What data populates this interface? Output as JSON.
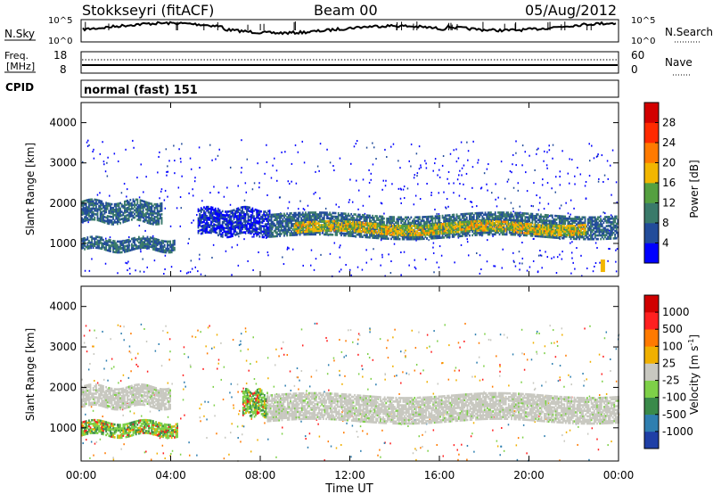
{
  "header": {
    "station": "Stokkseyri (fitACF)",
    "beam": "Beam 00",
    "date": "05/Aug/2012"
  },
  "noise_panel": {
    "left_label": "N.Sky",
    "left_ticks": [
      "10^5",
      "10^0"
    ],
    "right_ticks": [
      "10^5",
      "10^0"
    ],
    "right_label": "N.Search"
  },
  "freq_panel": {
    "left_label_1": "Freq.",
    "left_label_2": "[MHz]",
    "left_ticks": [
      "18",
      "8"
    ],
    "right_ticks": [
      "60",
      "0"
    ],
    "right_label": "Nave"
  },
  "cpid_panel": {
    "label": "CPID",
    "text": "normal (fast) 151"
  },
  "chart_data": [
    {
      "type": "heatmap",
      "name": "power",
      "ylabel": "Slant Range [km]",
      "ylim": [
        180,
        4500
      ],
      "yticks": [
        "1000",
        "2000",
        "3000",
        "4000"
      ],
      "xlim_hours": [
        0,
        24
      ],
      "colorbar_label": "Power [dB]",
      "colorbar_ticks": [
        "28",
        "24",
        "20",
        "16",
        "12",
        "8",
        "4"
      ],
      "colorbar_range": [
        0,
        30
      ],
      "colors": [
        "#0000ff",
        "#224c9a",
        "#3a7a6a",
        "#55a040",
        "#f2b600",
        "#ff7a00",
        "#ff2a00",
        "#d20000"
      ],
      "bands": [
        {
          "t0": 0,
          "t1": 3.6,
          "r0": 1520,
          "r1": 2050,
          "level": 1
        },
        {
          "t0": 0,
          "t1": 4.2,
          "r0": 820,
          "r1": 1100,
          "level": 1
        },
        {
          "t0": 5.2,
          "t1": 8.4,
          "r0": 1200,
          "r1": 1850,
          "level": 0
        },
        {
          "t0": 8.4,
          "t1": 24,
          "r0": 1150,
          "r1": 1700,
          "level": 1
        },
        {
          "t0": 9.5,
          "t1": 22.5,
          "r0": 1250,
          "r1": 1500,
          "level": 3
        }
      ]
    },
    {
      "type": "heatmap",
      "name": "velocity",
      "ylabel": "Slant Range [km]",
      "ylim": [
        180,
        4500
      ],
      "yticks": [
        "1000",
        "2000",
        "3000",
        "4000"
      ],
      "xlim_hours": [
        0,
        24
      ],
      "xticks": [
        "00:00",
        "04:00",
        "08:00",
        "12:00",
        "16:00",
        "20:00",
        "00:00"
      ],
      "xlabel": "Time UT",
      "colorbar_label": "Velocity [m s",
      "colorbar_label_sup": "-1",
      "colorbar_label_end": "]",
      "colorbar_ticks": [
        "1000",
        "500",
        "100",
        "25",
        "-25",
        "-100",
        "-500",
        "-1000"
      ],
      "colors": [
        "#1f3fa6",
        "#2f7fb0",
        "#3a8a4a",
        "#7ed048",
        "#c8c8c0",
        "#f0b000",
        "#ff7a00",
        "#ff2020",
        "#d00000"
      ],
      "bands": [
        {
          "t0": 0,
          "t1": 4.0,
          "r0": 1500,
          "r1": 2000,
          "class": "grey"
        },
        {
          "t0": 0,
          "t1": 4.3,
          "r0": 800,
          "r1": 1150,
          "class": "green"
        },
        {
          "t0": 7.2,
          "t1": 8.3,
          "r0": 1300,
          "r1": 1900,
          "class": "green"
        },
        {
          "t0": 8.3,
          "t1": 24,
          "r0": 1150,
          "r1": 1800,
          "class": "grey"
        }
      ]
    }
  ]
}
